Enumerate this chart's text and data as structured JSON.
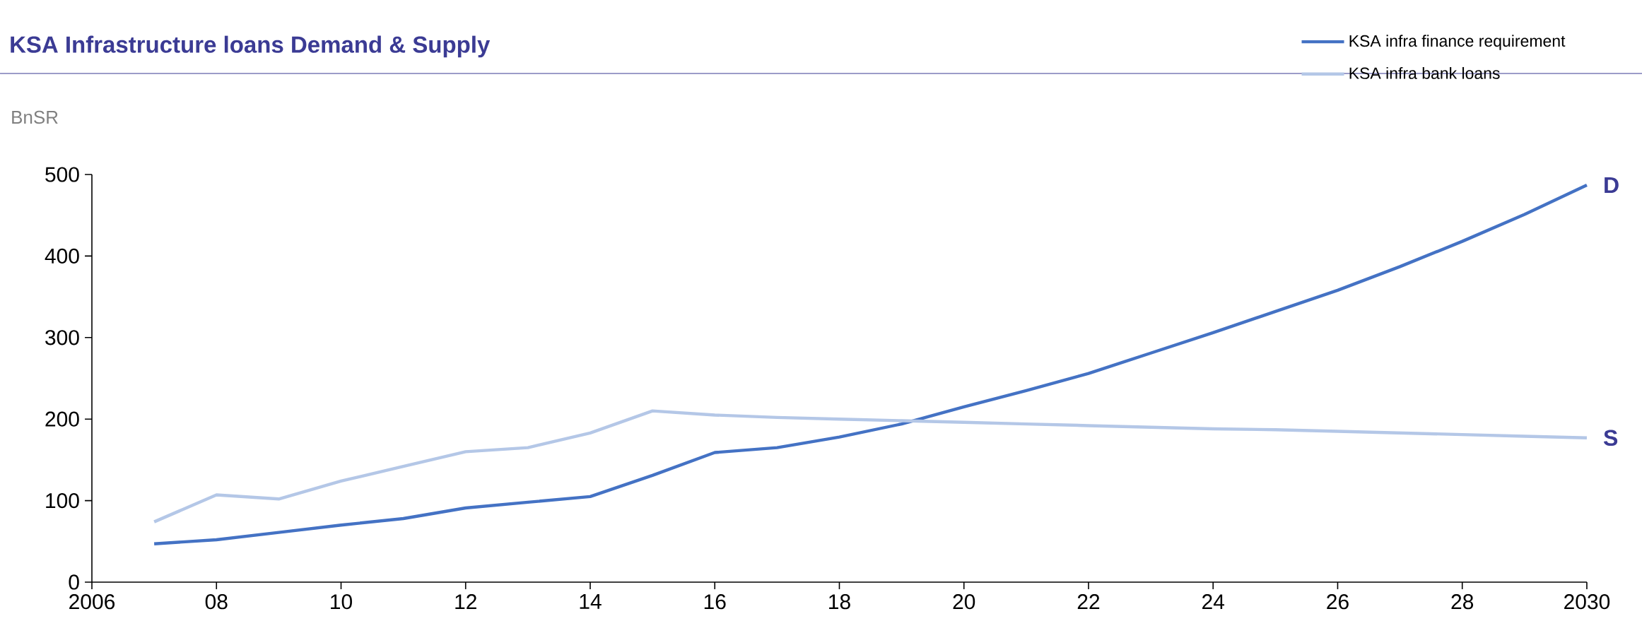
{
  "chart_data": {
    "type": "line",
    "title": "KSA Infrastructure loans Demand & Supply",
    "ylabel": "BnSR",
    "x": [
      2007,
      2008,
      2009,
      2010,
      2011,
      2012,
      2013,
      2014,
      2015,
      2016,
      2017,
      2018,
      2019,
      2020,
      2021,
      2022,
      2023,
      2024,
      2025,
      2026,
      2027,
      2028,
      2029,
      2030
    ],
    "series": [
      {
        "name": "KSA infra finance requirement",
        "color": "#4472c4",
        "values": [
          47,
          52,
          61,
          70,
          78,
          91,
          98,
          105,
          131,
          159,
          165,
          178,
          194,
          215,
          235,
          256,
          281,
          306,
          332,
          358,
          387,
          418,
          451,
          487
        ]
      },
      {
        "name": "KSA infra bank loans",
        "color": "#b4c7e7",
        "values": [
          74,
          107,
          102,
          124,
          142,
          160,
          165,
          183,
          210,
          205,
          202,
          200,
          198,
          196,
          194,
          192,
          190,
          188,
          187,
          185,
          183,
          181,
          179,
          177
        ]
      }
    ],
    "xlim": [
      2006,
      2030
    ],
    "ylim": [
      0,
      500
    ],
    "xticks": [
      2006,
      {
        "value": 2008,
        "label": "08"
      },
      {
        "value": 2010,
        "label": "10"
      },
      {
        "value": 2012,
        "label": "12"
      },
      {
        "value": 2014,
        "label": "14"
      },
      {
        "value": 2016,
        "label": "16"
      },
      {
        "value": 2018,
        "label": "18"
      },
      {
        "value": 2020,
        "label": "20"
      },
      {
        "value": 2022,
        "label": "22"
      },
      {
        "value": 2024,
        "label": "24"
      },
      {
        "value": 2026,
        "label": "26"
      },
      {
        "value": 2028,
        "label": "28"
      },
      2030
    ],
    "yticks": [
      0,
      100,
      200,
      300,
      400,
      500
    ],
    "legend": "top right",
    "annotations": [
      {
        "text": "D",
        "x": 2030,
        "y": 487
      },
      {
        "text": "S",
        "x": 2030,
        "y": 177
      }
    ]
  }
}
